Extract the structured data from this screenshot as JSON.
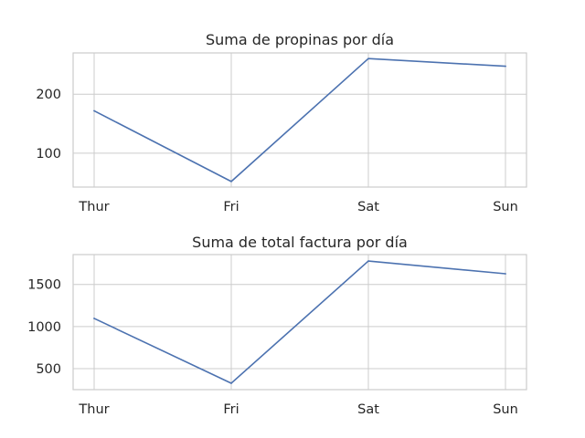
{
  "chart_data": [
    {
      "type": "line",
      "title": "Suma de propinas por día",
      "categories": [
        "Thur",
        "Fri",
        "Sat",
        "Sun"
      ],
      "values": [
        171.83,
        51.96,
        260.4,
        247.39
      ],
      "xlabel": "",
      "ylabel": "",
      "ylim": [
        42.5,
        270
      ],
      "yticks": [
        100,
        200
      ],
      "ytick_labels": [
        "100",
        "200"
      ],
      "grid": true,
      "line_color": "#4c72b0"
    },
    {
      "type": "line",
      "title": "Suma de total factura por día",
      "categories": [
        "Thur",
        "Fri",
        "Sat",
        "Sun"
      ],
      "values": [
        1096.33,
        325.88,
        1778.4,
        1627.16
      ],
      "xlabel": "",
      "ylabel": "",
      "ylim": [
        250,
        1855
      ],
      "yticks": [
        500,
        1000,
        1500
      ],
      "ytick_labels": [
        "500",
        "1000",
        "1500"
      ],
      "grid": true,
      "line_color": "#4c72b0"
    }
  ]
}
